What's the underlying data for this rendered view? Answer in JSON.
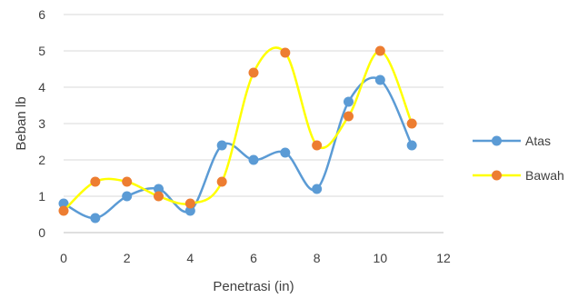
{
  "chart_data": {
    "type": "scatter",
    "title": "",
    "xlabel": "Penetrasi (in)",
    "ylabel": "Beban lb",
    "xlim": [
      0,
      12
    ],
    "ylim": [
      0,
      6
    ],
    "xticks": [
      0,
      2,
      4,
      6,
      8,
      10,
      12
    ],
    "yticks": [
      0,
      1,
      2,
      3,
      4,
      5,
      6
    ],
    "grid": "horizontal",
    "legend_position": "right",
    "smooth_lines": true,
    "series": [
      {
        "name": "Atas",
        "line_color": "#5B9BD5",
        "marker_color": "#5B9BD5",
        "x": [
          0,
          1,
          2,
          3,
          4,
          5,
          6,
          7,
          8,
          9,
          10,
          11
        ],
        "y": [
          0.8,
          0.4,
          1.0,
          1.2,
          0.6,
          2.4,
          2.0,
          2.2,
          1.2,
          3.6,
          4.2,
          2.4
        ]
      },
      {
        "name": "Bawah",
        "line_color": "#FFFF00",
        "marker_color": "#ED7D31",
        "x": [
          0,
          1,
          2,
          3,
          4,
          5,
          6,
          7,
          8,
          9,
          10,
          11
        ],
        "y": [
          0.6,
          1.4,
          1.4,
          1.0,
          0.8,
          1.4,
          4.4,
          4.95,
          2.4,
          3.2,
          5.0,
          3.0
        ]
      }
    ]
  }
}
